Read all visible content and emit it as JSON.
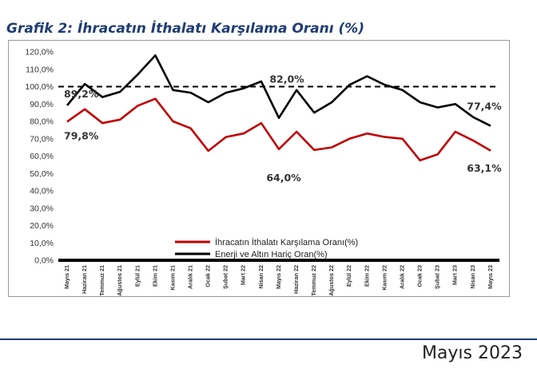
{
  "page": {
    "title": "Grafik 2: İhracatın İthalatı Karşılama Oranı (%)",
    "footer_date": "Mayıs 2023"
  },
  "chart_data": {
    "type": "line",
    "title": "Grafik 2: İhracatın İthalatı Karşılama Oranı (%)",
    "xlabel": "",
    "ylabel": "",
    "ylim": [
      0,
      120
    ],
    "y_ticks": [
      "0,0%",
      "10,0%",
      "20,0%",
      "30,0%",
      "40,0%",
      "50,0%",
      "60,0%",
      "70,0%",
      "80,0%",
      "90,0%",
      "100,0%",
      "110,0%",
      "120,0%"
    ],
    "grid": false,
    "legend_position": "bottom-center",
    "categories": [
      "Mayıs 21",
      "Haziran 21",
      "Temmuz 21",
      "Ağustos 21",
      "Eylül 21",
      "Ekim 21",
      "Kasım 21",
      "Aralık 21",
      "Ocak 22",
      "Şubat 22",
      "Mart 22",
      "Nisan 22",
      "Mayıs 22",
      "Haziran 22",
      "Temmuz 22",
      "Ağustos 22",
      "Eylül 22",
      "Ekim 22",
      "Kasım 22",
      "Aralık 22",
      "Ocak 23",
      "Şubat 23",
      "Mart 23",
      "Nisan 23",
      "Mayıs 23"
    ],
    "series": [
      {
        "name": "İhracatın İthalatı Karşılama  Oranı(%)",
        "color": "#c00000",
        "values": [
          79.8,
          87.0,
          79.0,
          81.0,
          89.0,
          93.0,
          80.0,
          76.0,
          63.0,
          71.0,
          73.0,
          79.0,
          64.0,
          74.0,
          63.5,
          65.0,
          70.0,
          73.0,
          71.0,
          70.0,
          57.5,
          61.0,
          74.0,
          69.0,
          63.1
        ]
      },
      {
        "name": "Enerji ve Altın Hariç  Oran(%)",
        "color": "#000000",
        "values": [
          89.2,
          101.5,
          94.0,
          97.0,
          107.0,
          118.0,
          98.0,
          96.5,
          91.0,
          96.5,
          99.0,
          103.0,
          82.0,
          98.0,
          85.0,
          91.0,
          101.0,
          106.0,
          101.0,
          98.0,
          91.0,
          88.0,
          90.0,
          82.5,
          77.4
        ]
      }
    ],
    "reference_line": {
      "value": 100,
      "style": "dashed",
      "color": "#000000"
    },
    "annotations": [
      {
        "text": "89,2%",
        "series": 1,
        "index": 0
      },
      {
        "text": "79,8%",
        "series": 0,
        "index": 0
      },
      {
        "text": "82,0%",
        "series": 1,
        "index": 12
      },
      {
        "text": "64,0%",
        "series": 0,
        "index": 12
      },
      {
        "text": "77,4%",
        "series": 1,
        "index": 24
      },
      {
        "text": "63,1%",
        "series": 0,
        "index": 24
      }
    ]
  }
}
